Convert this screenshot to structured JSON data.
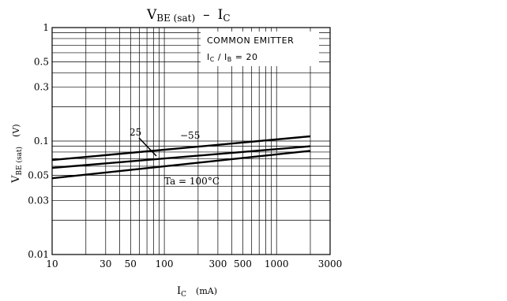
{
  "chart_data": {
    "type": "line",
    "title_main": "V",
    "title_main_sub": "BE (sat)",
    "title_dash": "–",
    "title_right": "I",
    "title_right_sub": "C",
    "xlabel_main": "I",
    "xlabel_sub": "C",
    "xlabel_unit": "(mA)",
    "ylabel_main": "V",
    "ylabel_sub": "BE (sat)",
    "ylabel_unit": "(V)",
    "x_scale": "log",
    "y_scale": "log",
    "xlim": [
      10,
      3000
    ],
    "ylim": [
      0.01,
      1
    ],
    "grid": true,
    "x_ticks": [
      {
        "value": 10,
        "label": "10"
      },
      {
        "value": 30,
        "label": "30"
      },
      {
        "value": 50,
        "label": "50"
      },
      {
        "value": 100,
        "label": "100"
      },
      {
        "value": 300,
        "label": "300"
      },
      {
        "value": 500,
        "label": "500"
      },
      {
        "value": 1000,
        "label": "1000"
      },
      {
        "value": 3000,
        "label": "3000"
      }
    ],
    "y_ticks": [
      {
        "value": 1,
        "label": "1"
      },
      {
        "value": 0.5,
        "label": "0.5"
      },
      {
        "value": 0.3,
        "label": "0.3"
      },
      {
        "value": 0.1,
        "label": "0.1"
      },
      {
        "value": 0.05,
        "label": "0.05"
      },
      {
        "value": 0.03,
        "label": "0.03"
      },
      {
        "value": 0.01,
        "label": "0.01"
      }
    ],
    "annotations": [
      "COMMON EMITTER",
      "I_C / I_B = 20"
    ],
    "annotation_common": "COMMON EMITTER",
    "annotation_ratio_main": "I",
    "annotation_ratio_sub1": "C",
    "annotation_ratio_mid": " / I",
    "annotation_ratio_sub2": "B",
    "annotation_ratio_end": " = 20",
    "series": [
      {
        "name": "−55",
        "x": [
          10,
          2000
        ],
        "y": [
          0.068,
          0.11
        ]
      },
      {
        "name": "25",
        "x": [
          10,
          2000
        ],
        "y": [
          0.058,
          0.09
        ]
      },
      {
        "name": "Ta = 100°C",
        "x": [
          10,
          2000
        ],
        "y": [
          0.047,
          0.082
        ]
      }
    ],
    "curve_labels": [
      {
        "text": "−55"
      },
      {
        "text": "25"
      },
      {
        "text": "Ta = 100°C"
      }
    ]
  },
  "colors": {
    "line": "#000000",
    "grid": "#000000",
    "background": "#ffffff"
  }
}
